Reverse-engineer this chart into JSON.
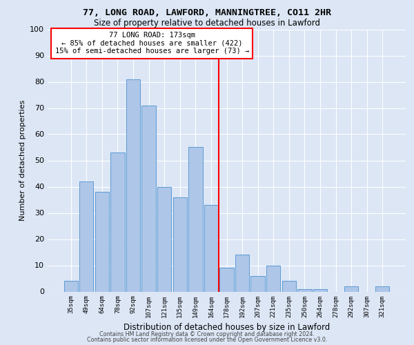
{
  "title_line1": "77, LONG ROAD, LAWFORD, MANNINGTREE, CO11 2HR",
  "title_line2": "Size of property relative to detached houses in Lawford",
  "xlabel": "Distribution of detached houses by size in Lawford",
  "ylabel": "Number of detached properties",
  "categories": [
    "35sqm",
    "49sqm",
    "64sqm",
    "78sqm",
    "92sqm",
    "107sqm",
    "121sqm",
    "135sqm",
    "149sqm",
    "164sqm",
    "178sqm",
    "192sqm",
    "207sqm",
    "221sqm",
    "235sqm",
    "250sqm",
    "264sqm",
    "278sqm",
    "292sqm",
    "307sqm",
    "321sqm"
  ],
  "values": [
    4,
    42,
    38,
    53,
    81,
    71,
    40,
    36,
    55,
    33,
    9,
    14,
    6,
    10,
    4,
    1,
    1,
    0,
    2,
    0,
    2
  ],
  "bar_color": "#aec6e8",
  "bar_edge_color": "#5a9bd5",
  "annotation_text": "77 LONG ROAD: 173sqm\n← 85% of detached houses are smaller (422)\n15% of semi-detached houses are larger (73) →",
  "annotation_box_color": "white",
  "annotation_box_edge_color": "red",
  "vline_color": "red",
  "vline_x": 9.5,
  "ylim": [
    0,
    100
  ],
  "yticks": [
    0,
    10,
    20,
    30,
    40,
    50,
    60,
    70,
    80,
    90,
    100
  ],
  "background_color": "#dce6f5",
  "axes_background": "#dce6f5",
  "grid_color": "white",
  "footer_line1": "Contains HM Land Registry data © Crown copyright and database right 2024.",
  "footer_line2": "Contains public sector information licensed under the Open Government Licence v3.0."
}
